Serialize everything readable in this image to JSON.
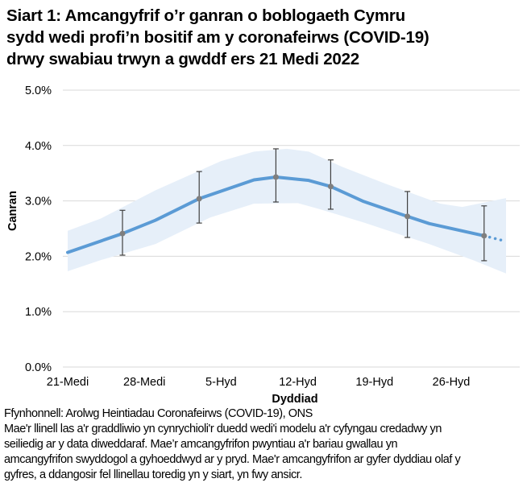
{
  "title_lines": [
    "Siart 1: Amcangyfrif o’r ganran o boblogaeth Cymru",
    "sydd wedi profi’n bositif am y coronafeirws (COVID-19)",
    "drwy swabiau trwyn a gwddf ers 21 Medi 2022"
  ],
  "notes_lines": [
    "Ffynhonnell: Arolwg Heintiadau Coronafeirws (COVID-19), ONS",
    "Mae'r llinell las a'r graddliwio yn cynrychioli'r duedd wedi'i modelu a'r cyfyngau credadwy yn",
    "seiliedig ar y data diweddaraf. Mae’r amcangyfrifon pwyntiau a'r bariau gwallau yn",
    "amcangyfrifon swyddogol a gyhoeddwyd ar y pryd. Mae'r amcangyfrifon ar gyfer dyddiau olaf y",
    "gyfres, a ddangosir fel llinellau toredig yn y siart, yn fwy ansicr."
  ],
  "chart_data": {
    "type": "line",
    "xlabel": "Dyddiad",
    "ylabel": "Canran",
    "ylim": [
      0,
      5
    ],
    "y_ticks": [
      "0.0%",
      "1.0%",
      "2.0%",
      "3.0%",
      "4.0%",
      "5.0%"
    ],
    "x_ticks": [
      {
        "date": "2022-09-21",
        "label": "21-Medi"
      },
      {
        "date": "2022-09-28",
        "label": "28-Medi"
      },
      {
        "date": "2022-10-05",
        "label": "5-Hyd"
      },
      {
        "date": "2022-10-12",
        "label": "12-Hyd"
      },
      {
        "date": "2022-10-19",
        "label": "19-Hyd"
      },
      {
        "date": "2022-10-26",
        "label": "26-Hyd"
      }
    ],
    "grid": true,
    "colors": {
      "trend": "#5b9bd5",
      "band": "#e6eff9",
      "points": "#7f7f7f",
      "error_bars": "#404040",
      "grid": "#d9d9d9"
    },
    "trend": {
      "solid": [
        [
          "2022-09-21",
          2.07
        ],
        [
          "2022-09-26",
          2.41
        ],
        [
          "2022-09-29",
          2.65
        ],
        [
          "2022-10-03",
          3.04
        ],
        [
          "2022-10-08",
          3.38
        ],
        [
          "2022-10-10",
          3.43
        ],
        [
          "2022-10-13",
          3.37
        ],
        [
          "2022-10-15",
          3.26
        ],
        [
          "2022-10-18",
          2.99
        ],
        [
          "2022-10-22",
          2.72
        ],
        [
          "2022-10-24",
          2.59
        ],
        [
          "2022-10-29",
          2.37
        ]
      ],
      "dotted": [
        [
          "2022-10-29",
          2.37
        ],
        [
          "2022-10-31",
          2.27
        ]
      ]
    },
    "credible_interval": {
      "upper": [
        [
          "2022-09-21",
          2.46
        ],
        [
          "2022-09-24",
          2.68
        ],
        [
          "2022-09-29",
          3.19
        ],
        [
          "2022-10-05",
          3.72
        ],
        [
          "2022-10-08",
          3.89
        ],
        [
          "2022-10-11",
          3.94
        ],
        [
          "2022-10-13",
          3.89
        ],
        [
          "2022-10-16",
          3.62
        ],
        [
          "2022-10-20",
          3.31
        ],
        [
          "2022-10-25",
          2.95
        ],
        [
          "2022-10-27",
          2.89
        ],
        [
          "2022-10-31",
          3.05
        ]
      ],
      "lower": [
        [
          "2022-09-21",
          1.73
        ],
        [
          "2022-09-24",
          1.93
        ],
        [
          "2022-09-29",
          2.22
        ],
        [
          "2022-10-04",
          2.7
        ],
        [
          "2022-10-08",
          2.95
        ],
        [
          "2022-10-12",
          2.96
        ],
        [
          "2022-10-14",
          2.85
        ],
        [
          "2022-10-18",
          2.61
        ],
        [
          "2022-10-24",
          2.22
        ],
        [
          "2022-10-28",
          1.93
        ],
        [
          "2022-10-31",
          1.69
        ]
      ]
    },
    "official_estimates": [
      {
        "date": "2022-09-26",
        "value": 2.41,
        "lower": 2.02,
        "upper": 2.83
      },
      {
        "date": "2022-10-03",
        "value": 3.04,
        "lower": 2.6,
        "upper": 3.53
      },
      {
        "date": "2022-10-10",
        "value": 3.43,
        "lower": 2.98,
        "upper": 3.94
      },
      {
        "date": "2022-10-15",
        "value": 3.26,
        "lower": 2.85,
        "upper": 3.74
      },
      {
        "date": "2022-10-22",
        "value": 2.72,
        "lower": 2.34,
        "upper": 3.17
      },
      {
        "date": "2022-10-29",
        "value": 2.37,
        "lower": 1.92,
        "upper": 2.91
      }
    ]
  }
}
